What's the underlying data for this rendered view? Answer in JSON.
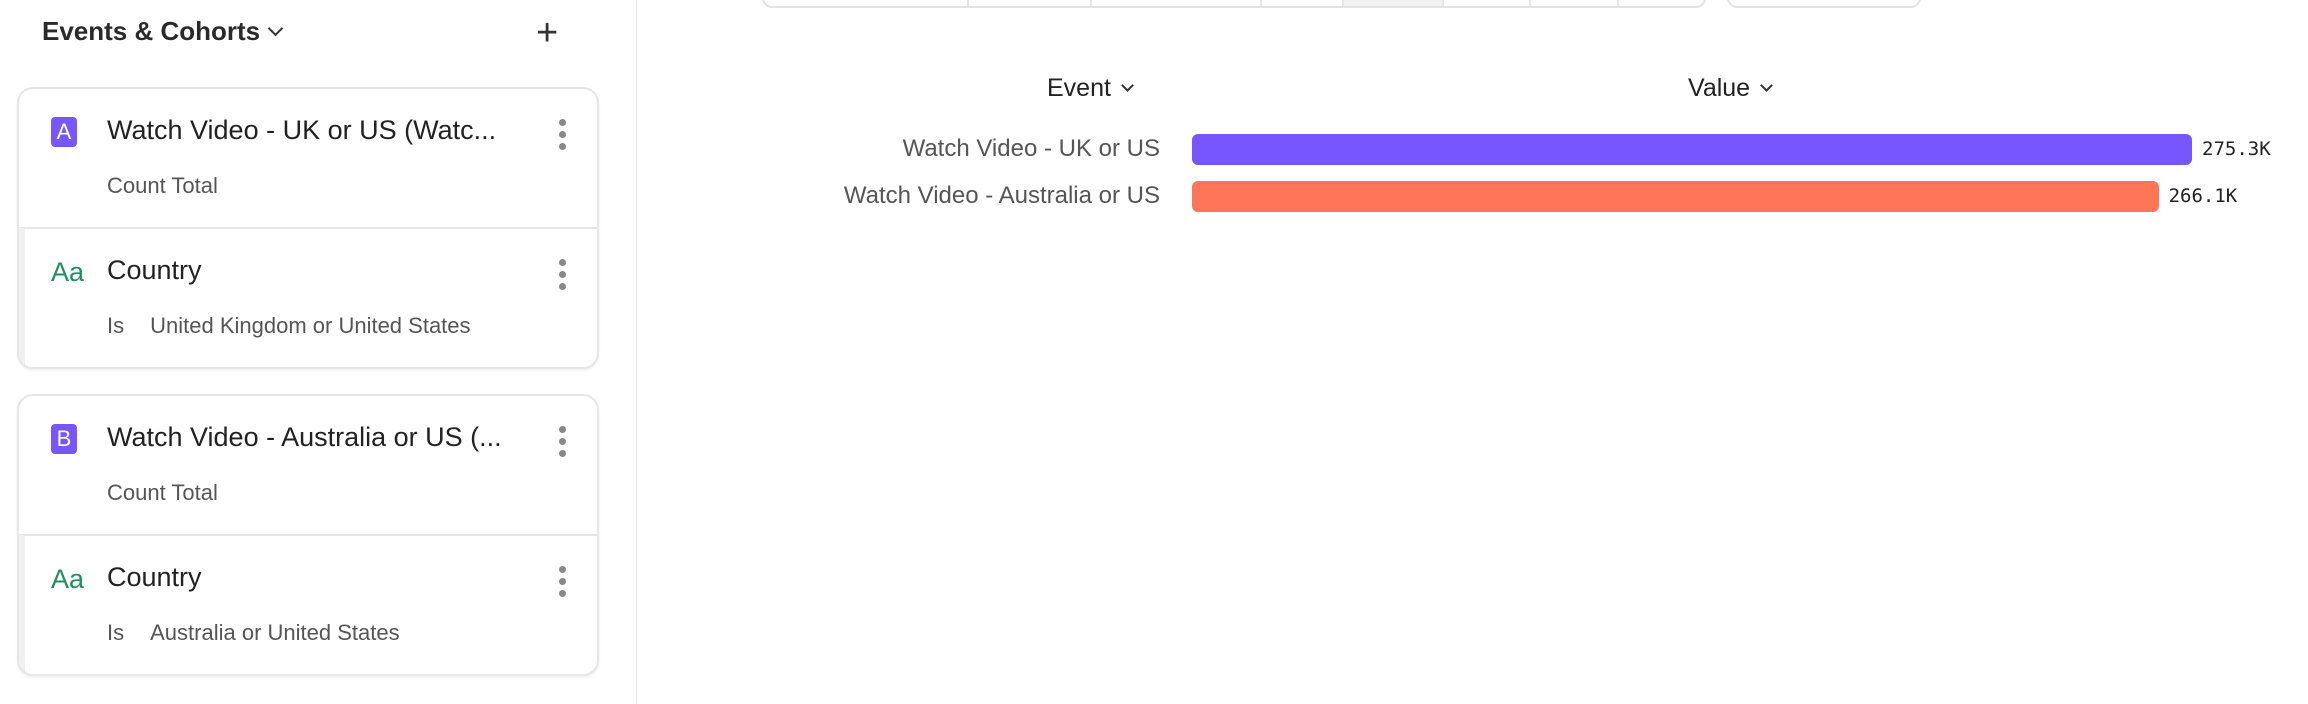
{
  "sidebar": {
    "title": "Events & Cohorts",
    "cards": [
      {
        "badge": "A",
        "event": "Watch Video - UK or US (Watc...",
        "measure": "Count Total",
        "filter": {
          "type_icon": "Aa",
          "property": "Country",
          "operator": "Is",
          "value": "United Kingdom or United States"
        }
      },
      {
        "badge": "B",
        "event": "Watch Video - Australia or US (...",
        "measure": "Count Total",
        "filter": {
          "type_icon": "Aa",
          "property": "Country",
          "operator": "Is",
          "value": "Australia or United States"
        }
      }
    ]
  },
  "table": {
    "event_header": "Event",
    "value_header": "Value"
  },
  "chart_data": {
    "type": "bar",
    "orientation": "horizontal",
    "categories": [
      "Watch Video - UK or US",
      "Watch Video - Australia or US"
    ],
    "values": [
      275300,
      266100
    ],
    "value_labels": [
      "275.3K",
      "266.1K"
    ],
    "colors": [
      "#7856ff",
      "#ff7557"
    ]
  }
}
